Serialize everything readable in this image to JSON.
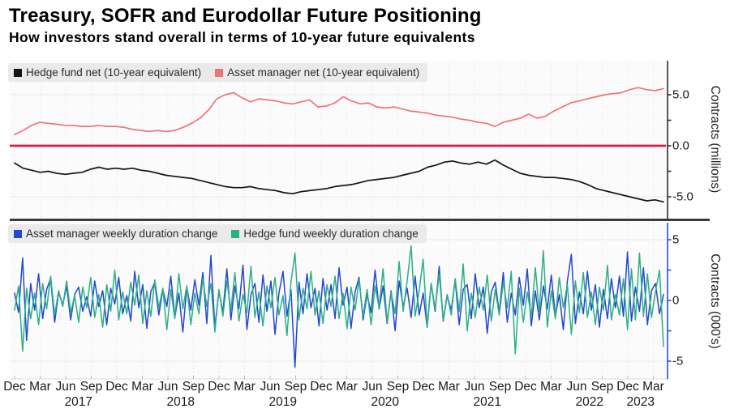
{
  "header": {
    "title": "Treasury, SOFR and Eurodollar Future Positioning",
    "subtitle": "How investors stand overall in terms of 10-year future equivalents"
  },
  "x_axis": {
    "quarters": [
      "Dec",
      "Mar",
      "Jun",
      "Sep",
      "Dec",
      "Mar",
      "Jun",
      "Sep",
      "Dec",
      "Mar",
      "Jun",
      "Sep",
      "Dec",
      "Mar",
      "Jun",
      "Sep",
      "Dec",
      "Mar",
      "Jun",
      "Sep",
      "Dec",
      "Mar",
      "Jun",
      "Sep",
      "Dec",
      "Mar"
    ],
    "years": [
      "2017",
      "2018",
      "2019",
      "2020",
      "2021",
      "2022",
      "2023"
    ]
  },
  "chart_data": [
    {
      "type": "line",
      "panel": "top",
      "title": "",
      "xlabel": "",
      "ylabel": "Contracts (millions)",
      "x_start": "Dec 2016",
      "x_end": "Apr 2023",
      "sampling": "monthly",
      "ylim": [
        -7.1,
        8.3
      ],
      "yticks": {
        "values": [
          5,
          0,
          -5
        ],
        "labels": [
          "5.0",
          "0.0",
          "-5.0"
        ]
      },
      "zero_line_color": "#e01a42",
      "grid": true,
      "legend_position": "top-left",
      "series": [
        {
          "name": "Hedge fund net (10-year equivalent)",
          "color": "#151515",
          "values": [
            -1.7,
            -2.2,
            -2.4,
            -2.6,
            -2.5,
            -2.7,
            -2.8,
            -2.7,
            -2.6,
            -2.3,
            -2.1,
            -2.3,
            -2.2,
            -2.3,
            -2.2,
            -2.4,
            -2.5,
            -2.7,
            -2.9,
            -3.0,
            -3.1,
            -3.2,
            -3.4,
            -3.6,
            -3.8,
            -4.0,
            -4.1,
            -4.1,
            -4.0,
            -4.2,
            -4.3,
            -4.4,
            -4.6,
            -4.7,
            -4.5,
            -4.4,
            -4.3,
            -4.2,
            -4.0,
            -3.9,
            -3.8,
            -3.6,
            -3.4,
            -3.3,
            -3.2,
            -3.1,
            -2.9,
            -2.7,
            -2.5,
            -2.1,
            -1.9,
            -1.6,
            -1.5,
            -1.7,
            -1.8,
            -1.6,
            -1.8,
            -1.4,
            -1.9,
            -2.3,
            -2.7,
            -2.9,
            -3.0,
            -3.1,
            -3.1,
            -3.2,
            -3.3,
            -3.5,
            -3.8,
            -4.2,
            -4.4,
            -4.6,
            -4.8,
            -5.0,
            -5.2,
            -5.4,
            -5.3,
            -5.5
          ]
        },
        {
          "name": "Asset manager net (10-year equivalent)",
          "color": "#f07474",
          "values": [
            1.1,
            1.5,
            2.0,
            2.3,
            2.2,
            2.1,
            2.0,
            2.0,
            1.9,
            1.9,
            2.0,
            1.9,
            1.9,
            1.8,
            1.6,
            1.5,
            1.4,
            1.5,
            1.4,
            1.5,
            1.8,
            2.2,
            2.7,
            3.5,
            4.6,
            5.0,
            5.2,
            4.7,
            4.3,
            4.6,
            4.5,
            4.4,
            4.2,
            4.1,
            4.3,
            4.5,
            3.8,
            3.9,
            4.2,
            4.8,
            4.4,
            4.1,
            4.2,
            3.8,
            3.7,
            3.8,
            3.6,
            3.4,
            3.3,
            3.2,
            3.0,
            2.9,
            2.8,
            2.6,
            2.5,
            2.3,
            2.2,
            1.9,
            2.3,
            2.5,
            2.7,
            3.1,
            2.7,
            2.9,
            3.4,
            3.8,
            4.2,
            4.4,
            4.6,
            4.8,
            5.0,
            5.1,
            5.2,
            5.5,
            5.7,
            5.5,
            5.4,
            5.6
          ]
        }
      ]
    },
    {
      "type": "line",
      "panel": "bottom",
      "title": "",
      "xlabel": "",
      "ylabel": "Contracts  (000's)",
      "x_start": "Dec 2016",
      "x_end": "Apr 2023",
      "sampling": "biweekly",
      "ylim": [
        -6.5,
        6.4
      ],
      "yticks": {
        "values": [
          5,
          0,
          -5
        ],
        "labels": [
          "5",
          "0",
          "-5"
        ]
      },
      "grid": true,
      "legend_position": "top-left",
      "series": [
        {
          "name": "Asset manager weekly duration change",
          "color": "#2348d1",
          "values": [
            0.6,
            -1.0,
            3.5,
            -3.3,
            1.4,
            -0.8,
            2.2,
            -1.5,
            0.9,
            1.8,
            -1.8,
            0.7,
            -0.4,
            1.2,
            -1.6,
            0.5,
            1.1,
            -0.9,
            0.3,
            -1.3,
            1.6,
            -0.5,
            0.8,
            -2.0,
            1.0,
            -0.3,
            1.9,
            -1.1,
            0.4,
            -1.7,
            2.4,
            -0.6,
            1.3,
            -2.3,
            0.7,
            1.5,
            -1.2,
            0.9,
            -0.5,
            2.0,
            -1.4,
            0.6,
            -2.6,
            1.1,
            -0.8,
            1.7,
            -0.4,
            2.3,
            -1.9,
            3.7,
            -2.2,
            0.8,
            -1.0,
            2.6,
            -1.6,
            1.2,
            -0.7,
            2.9,
            -2.4,
            0.5,
            1.4,
            -1.8,
            2.1,
            -0.9,
            1.6,
            -2.8,
            0.6,
            2.4,
            -1.3,
            0.9,
            -5.5,
            1.5,
            -1.1,
            2.2,
            -0.6,
            1.0,
            -2.1,
            1.8,
            -0.8,
            1.3,
            -1.5,
            2.7,
            -0.4,
            1.1,
            -2.3,
            0.7,
            1.9,
            -1.6,
            0.5,
            -1.0,
            2.5,
            -0.7,
            1.2,
            -1.9,
            0.8,
            -2.5,
            1.6,
            -0.5,
            1.0,
            -1.4,
            2.0,
            -1.2,
            0.6,
            -2.2,
            1.4,
            -0.9,
            2.8,
            -1.7,
            0.4,
            -0.8,
            1.7,
            -2.0,
            0.9,
            1.3,
            -1.5,
            2.2,
            -0.6,
            1.1,
            -2.7,
            0.7,
            1.5,
            -1.0,
            2.3,
            -1.8,
            0.6,
            -1.2,
            1.9,
            -0.4,
            2.6,
            -2.1,
            0.8,
            -1.6,
            1.2,
            -0.7,
            2.1,
            -1.3,
            0.5,
            -2.4,
            1.6,
            3.8,
            -1.9,
            0.7,
            -1.1,
            2.4,
            -0.8,
            1.3,
            -2.2,
            0.9,
            -1.5,
            1.8,
            -0.6,
            2.0,
            -1.3,
            4.0,
            -1.7,
            1.1,
            -0.9,
            2.7,
            -2.0,
            0.8,
            1.4,
            -1.1,
            0.5
          ]
        },
        {
          "name": "Hedge fund weekly duration change",
          "color": "#28b185",
          "values": [
            -0.8,
            1.2,
            -4.2,
            1.0,
            -1.5,
            0.6,
            -2.0,
            1.4,
            -0.7,
            2.0,
            -1.2,
            0.8,
            -0.5,
            1.6,
            -1.0,
            0.4,
            -1.8,
            1.1,
            -0.6,
            1.9,
            -1.4,
            0.5,
            -2.2,
            1.3,
            -0.9,
            2.5,
            -1.6,
            0.7,
            -1.1,
            1.5,
            -0.4,
            2.1,
            -1.9,
            0.8,
            -1.3,
            1.7,
            -0.6,
            1.0,
            -2.4,
            0.9,
            -1.5,
            2.2,
            -0.7,
            1.2,
            -2.0,
            0.6,
            -1.1,
            1.8,
            -0.5,
            1.4,
            -2.6,
            0.9,
            -1.3,
            1.6,
            -0.8,
            2.3,
            -1.7,
            0.5,
            -1.0,
            2.8,
            -1.4,
            0.7,
            -2.1,
            1.2,
            -0.6,
            1.9,
            -1.2,
            0.4,
            -2.9,
            1.5,
            3.9,
            -1.6,
            1.0,
            -0.7,
            2.4,
            -1.2,
            0.8,
            -1.9,
            1.3,
            -0.5,
            2.0,
            -1.5,
            0.6,
            -2.3,
            1.1,
            -0.8,
            1.7,
            -1.3,
            0.9,
            -2.0,
            1.2,
            -0.6,
            2.6,
            -1.8,
            0.7,
            -1.1,
            3.2,
            -0.9,
            1.6,
            4.5,
            -1.3,
            0.8,
            3.4,
            -2.1,
            1.4,
            -0.7,
            2.2,
            -1.6,
            0.5,
            -1.2,
            1.8,
            -0.9,
            3.0,
            -2.5,
            0.6,
            -1.4,
            1.1,
            -0.8,
            2.1,
            -1.7,
            0.9,
            -1.2,
            1.5,
            -0.6,
            2.4,
            -4.4,
            1.0,
            -1.8,
            0.7,
            -1.3,
            2.7,
            -0.9,
            4.1,
            -2.2,
            0.8,
            -1.5,
            1.9,
            -0.6,
            1.3,
            -2.8,
            1.6,
            -1.0,
            2.3,
            -1.4,
            0.7,
            -2.0,
            1.1,
            -0.8,
            2.9,
            -1.6,
            0.5,
            -1.2,
            1.8,
            -2.4,
            2.6,
            -1.6,
            3.9,
            -1.3,
            2.2,
            -1.4,
            0.7,
            2.5,
            -3.8
          ]
        }
      ]
    }
  ]
}
